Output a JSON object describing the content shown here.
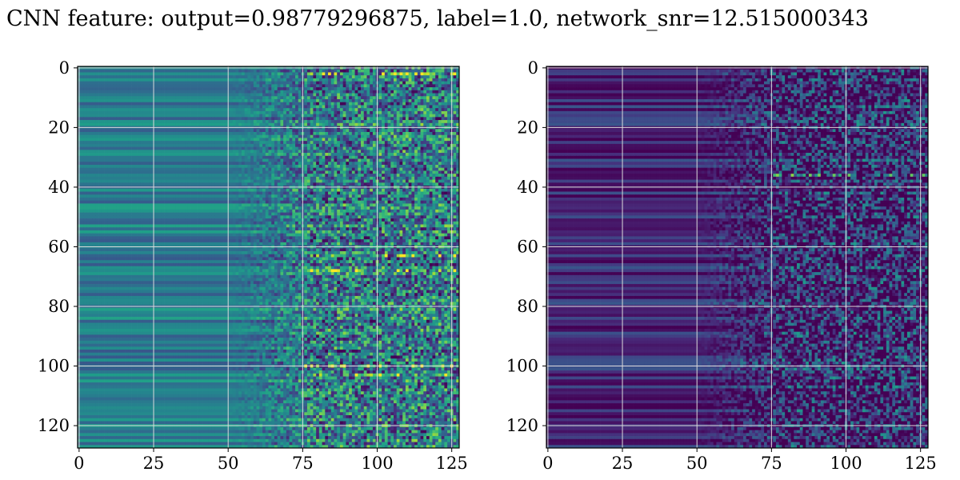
{
  "title": "CNN feature: output=0.98779296875, label=1.0, network_snr=12.515000343",
  "chart_data": [
    {
      "type": "heatmap",
      "colormap": "viridis",
      "rows": 128,
      "cols": 128,
      "xlim": [
        0,
        128
      ],
      "ylim": [
        128,
        0
      ],
      "xticks": [
        0,
        25,
        50,
        75,
        100,
        125
      ],
      "yticks": [
        0,
        20,
        40,
        60,
        80,
        100,
        120
      ],
      "grid": true,
      "value_pattern": "columns 0-50 smooth horizontal bands of mid-low intensity (teal/blue); columns 75-128 noisy high-variance speckle with bright yellow spots near rows 2, 63, 68, 100, 103",
      "bright_rows": [
        2,
        63,
        68,
        100,
        103
      ],
      "base_level": 0.42
    },
    {
      "type": "heatmap",
      "colormap": "viridis",
      "rows": 128,
      "cols": 128,
      "xlim": [
        0,
        128
      ],
      "ylim": [
        128,
        0
      ],
      "xticks": [
        0,
        25,
        50,
        75,
        100,
        125
      ],
      "yticks": [
        0,
        20,
        40,
        60,
        80,
        100,
        120
      ],
      "grid": true,
      "value_pattern": "columns 0-50 dark purple low intensity; noisy speckle increasing to the right; bright spot near row 36 col 83",
      "bright_rows": [
        36
      ],
      "base_level": 0.12
    }
  ]
}
